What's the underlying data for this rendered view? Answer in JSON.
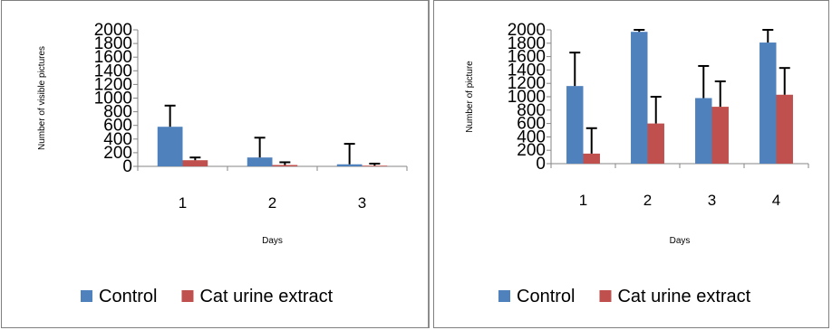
{
  "chart_data": [
    {
      "type": "bar",
      "categories": [
        "1",
        "2",
        "3"
      ],
      "series": [
        {
          "name": "Control",
          "values": [
            580,
            130,
            30
          ],
          "errors": [
            310,
            290,
            300
          ],
          "color": "#4f81bd"
        },
        {
          "name": "Cat urine extract",
          "values": [
            90,
            20,
            10
          ],
          "errors": [
            40,
            40,
            30
          ],
          "color": "#c0504d"
        }
      ],
      "xlabel": "Days",
      "ylabel": "Number of visible pictures",
      "ylim": [
        0,
        2000
      ],
      "yticks": [
        0,
        200,
        400,
        600,
        800,
        1000,
        1200,
        1400,
        1600,
        1800,
        2000
      ],
      "grid": false,
      "legend": "bottom"
    },
    {
      "type": "bar",
      "categories": [
        "1",
        "2",
        "3",
        "4"
      ],
      "series": [
        {
          "name": "Control",
          "values": [
            1160,
            1970,
            980,
            1810
          ],
          "errors": [
            500,
            480,
            480,
            480
          ],
          "color": "#4f81bd"
        },
        {
          "name": "Cat urine extract",
          "values": [
            150,
            600,
            850,
            1030
          ],
          "errors": [
            380,
            400,
            380,
            400
          ],
          "color": "#c0504d"
        }
      ],
      "xlabel": "Days",
      "ylabel": "Number of picture",
      "ylim": [
        0,
        2000
      ],
      "yticks": [
        0,
        200,
        400,
        600,
        800,
        1000,
        1200,
        1400,
        1600,
        1800,
        2000
      ],
      "grid": false,
      "legend": "bottom"
    }
  ]
}
